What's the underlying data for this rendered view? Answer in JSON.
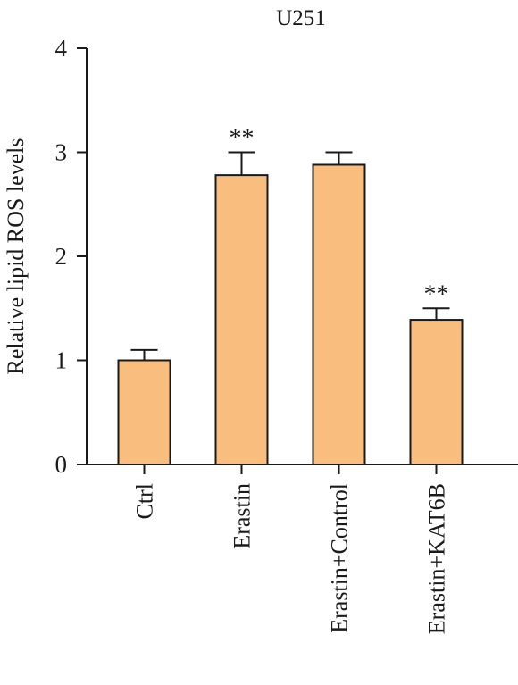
{
  "chart_data": {
    "type": "bar",
    "title": "U251",
    "xlabel": "",
    "ylabel": "Relative lipid ROS levels",
    "ylim": [
      0,
      4
    ],
    "yticks": [
      0,
      1,
      2,
      3,
      4
    ],
    "categories": [
      "Ctrl",
      "Erastin",
      "Erastin+Control",
      "Erastin+KAT6B"
    ],
    "values": [
      1.0,
      2.78,
      2.88,
      1.39
    ],
    "errors": [
      0.1,
      0.22,
      0.12,
      0.11
    ],
    "annotations": [
      "",
      "**",
      "",
      "**"
    ],
    "bar_color": "#F9BE7E",
    "bar_edge_color": "#1a1a1a",
    "grid": false,
    "legend": "none"
  }
}
